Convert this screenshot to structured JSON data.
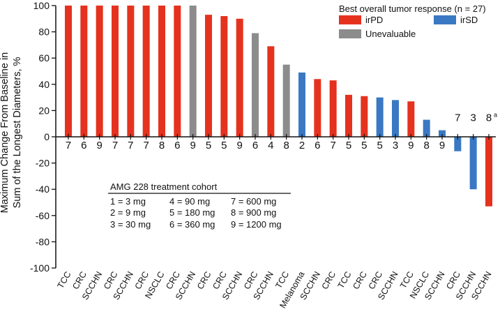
{
  "chart_data": {
    "type": "bar",
    "ylabel": "Maximum Change From Baseline in Sum of the Longest Diameters, %",
    "ylabel_lines": [
      "Maximum Change From Baseline in",
      "Sum of the Longest Diameters, %"
    ],
    "ylim": [
      -100,
      100
    ],
    "yticks": [
      -100,
      -80,
      -60,
      -40,
      -20,
      0,
      20,
      40,
      60,
      80,
      100
    ],
    "categories": [
      "TCC",
      "CRC",
      "SCCHN",
      "CRC",
      "SCCHN",
      "CRC",
      "NSCLC",
      "CRC",
      "SCCHN",
      "CRC",
      "CRC",
      "SCCHN",
      "CRC",
      "SCCHN",
      "TCC",
      "Melanoma",
      "SCCHN",
      "CRC",
      "TCC",
      "CRC",
      "CRC",
      "SCCHN",
      "TCC",
      "NSCLC",
      "SCCHN",
      "CRC",
      "SCCHN"
    ],
    "cohorts": [
      "7",
      "6",
      "9",
      "7",
      "7",
      "7",
      "8",
      "6",
      "9",
      "5",
      "5",
      "9",
      "6",
      "4",
      "8",
      "2",
      "6",
      "7",
      "5",
      "5",
      "5",
      "3",
      "9",
      "8",
      "9",
      "7",
      "3"
    ],
    "values": [
      100,
      100,
      100,
      100,
      100,
      100,
      100,
      100,
      100,
      93,
      92,
      90,
      79,
      69,
      55,
      49,
      44,
      43,
      32,
      31,
      30,
      28,
      27,
      13,
      5,
      -11,
      -40
    ],
    "responses": [
      "irPD",
      "irPD",
      "irPD",
      "irPD",
      "irPD",
      "irPD",
      "irPD",
      "irPD",
      "Unevaluable",
      "irPD",
      "irPD",
      "irPD",
      "Unevaluable",
      "irPD",
      "Unevaluable",
      "irSD",
      "irPD",
      "irPD",
      "irPD",
      "irPD",
      "irSD",
      "irSD",
      "irPD",
      "irSD",
      "irSD",
      "irSD",
      "irSD"
    ],
    "last_bar": {
      "category": "SCCHN",
      "cohort": "8",
      "cohort_note": "a",
      "value": -53,
      "response": "irPD"
    },
    "legend": {
      "title": "Best overall tumor response (n = 27)",
      "placement": "top-right",
      "entries": [
        {
          "label": "irPD",
          "color": "#e5321e"
        },
        {
          "label": "irSD",
          "color": "#3a78c3"
        },
        {
          "label": "Unevaluable",
          "color": "#8c8c8c"
        }
      ]
    },
    "cohort_table": {
      "title": "AMG 228 treatment cohort",
      "rows": [
        [
          "1 = 3 mg",
          "4 = 90 mg",
          "7 = 600 mg"
        ],
        [
          "2 = 9 mg",
          "5 = 180 mg",
          "8 = 900 mg"
        ],
        [
          "3 = 30 mg",
          "6 = 360 mg",
          "9 = 1200 mg"
        ]
      ]
    }
  }
}
